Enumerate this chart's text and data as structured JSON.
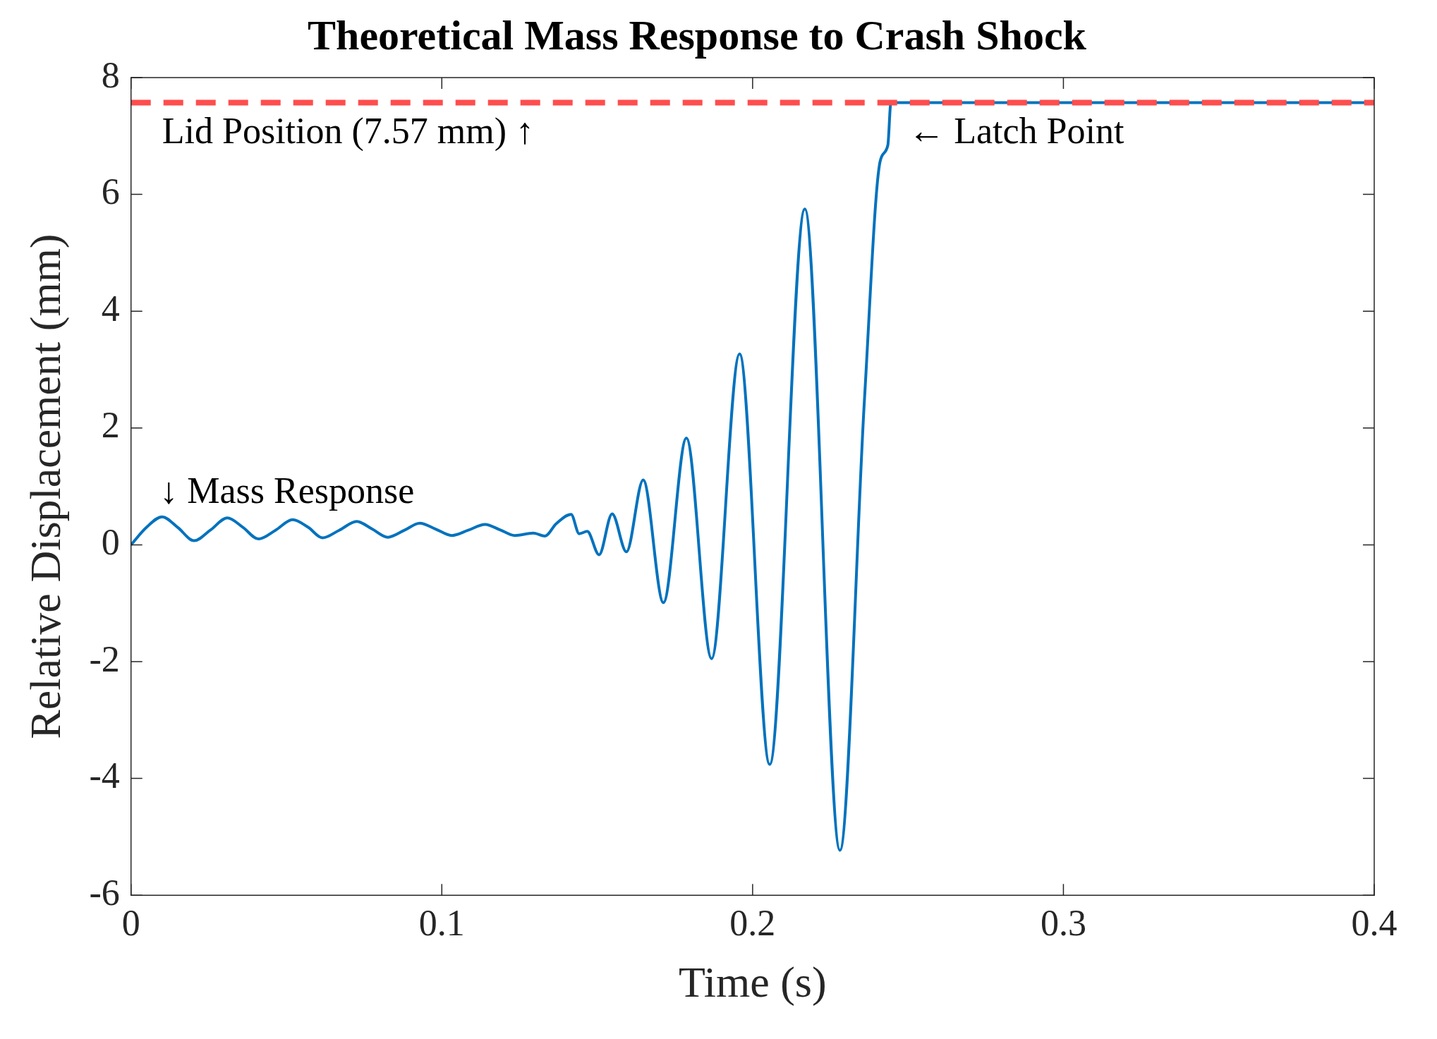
{
  "chart_data": {
    "type": "line",
    "title": "Theoretical Mass Response to Crash Shock",
    "xlabel": "Time (s)",
    "ylabel": "Relative Displacement (mm)",
    "xlim": [
      0,
      0.4
    ],
    "xticks": [
      0,
      0.1,
      0.2,
      0.3,
      0.4
    ],
    "ylim": [
      -6,
      8
    ],
    "yticks": [
      -6,
      -4,
      -2,
      0,
      2,
      4,
      6,
      8
    ],
    "grid": false,
    "legend": false,
    "marker": "none",
    "line_style": "solid",
    "series": [
      {
        "color": "#0072bd",
        "x": [
          0,
          0.005,
          0.01,
          0.015,
          0.0203,
          0.0255,
          0.031,
          0.036,
          0.041,
          0.0465,
          0.052,
          0.057,
          0.0616,
          0.067,
          0.0726,
          0.0776,
          0.0826,
          0.088,
          0.0929,
          0.098,
          0.1032,
          0.1085,
          0.1139,
          0.119,
          0.1235,
          0.1294,
          0.1332,
          0.1368,
          0.1416,
          0.1442,
          0.1468,
          0.1506,
          0.1548,
          0.1594,
          0.1648,
          0.1713,
          0.1787,
          0.1868,
          0.1958,
          0.2055,
          0.2168,
          0.2281,
          0.236,
          0.241,
          0.2435,
          0.2445,
          0.3,
          0.4
        ],
        "values": [
          0,
          0.3,
          0.48,
          0.3,
          0.07,
          0.25,
          0.46,
          0.3,
          0.1,
          0.25,
          0.43,
          0.3,
          0.12,
          0.25,
          0.4,
          0.27,
          0.13,
          0.25,
          0.37,
          0.27,
          0.16,
          0.25,
          0.35,
          0.25,
          0.16,
          0.2,
          0.15,
          0.36,
          0.52,
          0.19,
          0.23,
          -0.17,
          0.53,
          -0.12,
          1.11,
          -0.99,
          1.83,
          -1.95,
          3.27,
          -3.76,
          5.75,
          -5.23,
          2.5,
          6.56,
          6.84,
          7.57,
          7.57,
          7.57
        ]
      }
    ],
    "ref_lines": [
      {
        "axis": "y",
        "value": 7.57,
        "color": "#ff4d4d",
        "line_style": "dashed"
      }
    ],
    "annotations": [
      "Lid Position (7.57 mm) ↑",
      "← Latch Point",
      "↓ Mass Response"
    ]
  }
}
